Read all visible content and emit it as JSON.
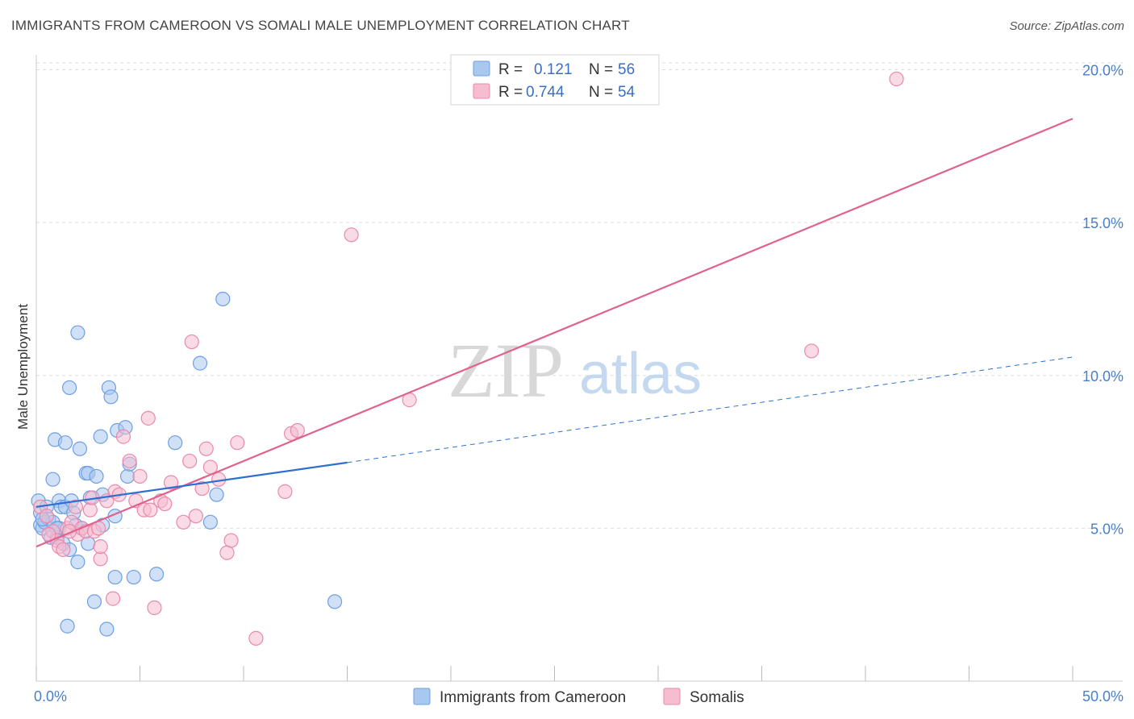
{
  "title": "IMMIGRANTS FROM CAMEROON VS SOMALI MALE UNEMPLOYMENT CORRELATION CHART",
  "source": "Source: ZipAtlas.com",
  "watermark": {
    "zip": "ZIP",
    "atlas": "atlas"
  },
  "colors": {
    "blue_fill": "#a9c8f0",
    "blue_stroke": "#6f9fe0",
    "blue_line": "#2f6fd0",
    "pink_fill": "#f6bcd0",
    "pink_stroke": "#e98aab",
    "pink_line": "#e0628e",
    "grid": "#dddddd",
    "tick_label": "#4a7fc8"
  },
  "legend": {
    "rows": [
      {
        "r_label": "R =",
        "r_value": "0.121",
        "n_label": "N =",
        "n_value": "56"
      },
      {
        "r_label": "R =",
        "r_value": "0.744",
        "n_label": "N =",
        "n_value": "54"
      }
    ]
  },
  "chart_data": {
    "type": "scatter",
    "title": "IMMIGRANTS FROM CAMEROON VS SOMALI MALE UNEMPLOYMENT CORRELATION CHART",
    "xlabel": "",
    "ylabel": "Male Unemployment",
    "xlim": [
      0,
      50
    ],
    "ylim": [
      0,
      20.7
    ],
    "x_tick_labels": [
      "0.0%",
      "50.0%"
    ],
    "y_ticks": [
      5,
      10,
      15,
      20
    ],
    "y_tick_labels": [
      "5.0%",
      "10.0%",
      "15.0%",
      "20.0%"
    ],
    "grid": true,
    "legend_position": "top-center",
    "series": [
      {
        "name": "Immigrants from Cameroon",
        "R": 0.121,
        "N": 56,
        "trend_solid": [
          [
            0,
            5.7
          ],
          [
            15,
            7.15
          ]
        ],
        "trend_dashed": [
          [
            15,
            7.15
          ],
          [
            50,
            10.6
          ]
        ],
        "points": [
          [
            0.1,
            5.9
          ],
          [
            0.2,
            5.5
          ],
          [
            0.2,
            5.1
          ],
          [
            0.3,
            5.0
          ],
          [
            0.4,
            5.2
          ],
          [
            0.5,
            5.7
          ],
          [
            0.6,
            5.3
          ],
          [
            0.7,
            4.7
          ],
          [
            0.8,
            6.6
          ],
          [
            0.8,
            5.2
          ],
          [
            0.9,
            7.9
          ],
          [
            1.0,
            4.7
          ],
          [
            1.1,
            5.9
          ],
          [
            1.1,
            5.0
          ],
          [
            1.2,
            5.7
          ],
          [
            1.3,
            4.5
          ],
          [
            1.4,
            5.7
          ],
          [
            1.4,
            7.8
          ],
          [
            1.5,
            1.8
          ],
          [
            1.6,
            4.3
          ],
          [
            1.6,
            9.6
          ],
          [
            1.7,
            5.9
          ],
          [
            1.8,
            5.5
          ],
          [
            1.9,
            5.1
          ],
          [
            2.0,
            3.9
          ],
          [
            2.0,
            11.4
          ],
          [
            2.1,
            7.6
          ],
          [
            2.2,
            5.0
          ],
          [
            2.4,
            6.8
          ],
          [
            2.5,
            6.8
          ],
          [
            2.5,
            4.5
          ],
          [
            2.6,
            6.0
          ],
          [
            2.8,
            2.6
          ],
          [
            2.9,
            6.7
          ],
          [
            3.1,
            8.0
          ],
          [
            3.2,
            6.1
          ],
          [
            3.2,
            5.1
          ],
          [
            3.4,
            1.7
          ],
          [
            3.5,
            9.6
          ],
          [
            3.6,
            9.3
          ],
          [
            3.8,
            3.4
          ],
          [
            3.8,
            5.4
          ],
          [
            3.9,
            8.2
          ],
          [
            4.3,
            8.3
          ],
          [
            4.4,
            6.7
          ],
          [
            4.5,
            7.1
          ],
          [
            4.7,
            3.4
          ],
          [
            5.8,
            3.5
          ],
          [
            6.7,
            7.8
          ],
          [
            7.9,
            10.4
          ],
          [
            8.4,
            5.2
          ],
          [
            8.7,
            6.1
          ],
          [
            9.0,
            12.5
          ],
          [
            14.4,
            2.6
          ],
          [
            0.3,
            5.3
          ],
          [
            1.0,
            5.0
          ]
        ]
      },
      {
        "name": "Somalis",
        "R": 0.744,
        "N": 54,
        "trend_solid": [
          [
            0,
            4.4
          ],
          [
            50,
            18.4
          ]
        ],
        "points": [
          [
            0.2,
            5.7
          ],
          [
            0.5,
            5.4
          ],
          [
            0.8,
            4.9
          ],
          [
            1.0,
            4.6
          ],
          [
            1.1,
            4.4
          ],
          [
            1.3,
            4.3
          ],
          [
            1.5,
            5.0
          ],
          [
            1.7,
            5.2
          ],
          [
            1.9,
            5.7
          ],
          [
            2.0,
            4.8
          ],
          [
            2.2,
            5.0
          ],
          [
            2.4,
            4.9
          ],
          [
            2.6,
            5.6
          ],
          [
            2.8,
            4.9
          ],
          [
            3.0,
            5.0
          ],
          [
            3.1,
            4.0
          ],
          [
            3.1,
            4.4
          ],
          [
            3.4,
            5.9
          ],
          [
            3.7,
            2.7
          ],
          [
            3.8,
            6.2
          ],
          [
            4.0,
            6.1
          ],
          [
            4.2,
            8.0
          ],
          [
            4.5,
            7.2
          ],
          [
            4.8,
            5.9
          ],
          [
            5.0,
            6.7
          ],
          [
            5.2,
            5.6
          ],
          [
            5.4,
            8.6
          ],
          [
            5.5,
            5.6
          ],
          [
            5.7,
            2.4
          ],
          [
            6.0,
            5.9
          ],
          [
            6.5,
            6.5
          ],
          [
            7.1,
            5.2
          ],
          [
            7.4,
            7.2
          ],
          [
            7.5,
            11.1
          ],
          [
            7.7,
            5.4
          ],
          [
            8.0,
            6.3
          ],
          [
            8.2,
            7.6
          ],
          [
            8.4,
            7.0
          ],
          [
            8.8,
            6.6
          ],
          [
            9.2,
            4.2
          ],
          [
            9.4,
            4.6
          ],
          [
            9.7,
            7.8
          ],
          [
            10.6,
            1.4
          ],
          [
            12.0,
            6.2
          ],
          [
            12.3,
            8.1
          ],
          [
            12.6,
            8.2
          ],
          [
            15.2,
            14.6
          ],
          [
            18.0,
            9.2
          ],
          [
            37.4,
            10.8
          ],
          [
            41.5,
            19.7
          ],
          [
            0.6,
            4.8
          ],
          [
            1.6,
            4.9
          ],
          [
            2.7,
            6.0
          ],
          [
            6.2,
            5.8
          ]
        ]
      }
    ]
  },
  "bottom_legend": [
    {
      "label": "Immigrants from Cameroon"
    },
    {
      "label": "Somalis"
    }
  ]
}
